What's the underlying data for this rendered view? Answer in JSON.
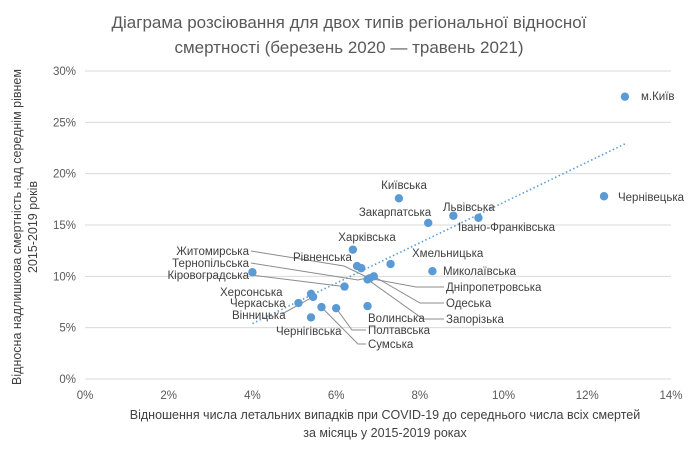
{
  "chart_data": {
    "type": "scatter",
    "title_lines": [
      "Діаграма розсіювання для двох типів регіональної відносної",
      "смертності (березень 2020 — травень 2021)"
    ],
    "xlabel_lines": [
      "Відношення числа летальних випадків при COVID-19 до середнього числа всіх смертей",
      "за місяць у 2015-2019 роках"
    ],
    "ylabel_lines": [
      "Відносна надлишкова смертність над середнім рівнем",
      "2015-2019 років"
    ],
    "xlim": [
      0,
      14
    ],
    "ylim": [
      0,
      30
    ],
    "x_ticks": [
      0,
      2,
      4,
      6,
      8,
      10,
      12,
      14
    ],
    "y_ticks": [
      0,
      5,
      10,
      15,
      20,
      25,
      30
    ],
    "x_tick_labels": [
      "0%",
      "2%",
      "4%",
      "6%",
      "8%",
      "10%",
      "12%",
      "14%"
    ],
    "y_tick_labels": [
      "0%",
      "5%",
      "10%",
      "15%",
      "20%",
      "25%",
      "30%"
    ],
    "grid": "horizontal",
    "marker_color": "#5b9bd5",
    "trendline": {
      "style": "dotted",
      "color": "#5b9bd5",
      "x": [
        4.0,
        12.9
      ],
      "y": [
        5.4,
        22.9
      ]
    },
    "points": [
      {
        "label": "м.Київ",
        "x": 12.9,
        "y": 27.5
      },
      {
        "label": "Чернівецька",
        "x": 12.4,
        "y": 17.8
      },
      {
        "label": "Київська",
        "x": 7.5,
        "y": 17.6
      },
      {
        "label": "Львівська",
        "x": 8.8,
        "y": 15.9
      },
      {
        "label": "Івано-Франківська",
        "x": 9.4,
        "y": 15.7
      },
      {
        "label": "Закарпатська",
        "x": 8.2,
        "y": 15.2
      },
      {
        "label": "Харківська",
        "x": 6.4,
        "y": 12.6
      },
      {
        "label": "Хмельницька",
        "x": 7.3,
        "y": 11.2
      },
      {
        "label": "Миколаївська",
        "x": 8.3,
        "y": 10.5
      },
      {
        "label": "Рівненська",
        "x": 6.5,
        "y": 11.0
      },
      {
        "label": "Житомирська",
        "x": 4.0,
        "y": 10.4
      },
      {
        "label": "Тернопільська",
        "x": 6.6,
        "y": 10.8
      },
      {
        "label": "Дніпропетровська",
        "x": 6.8,
        "y": 9.8
      },
      {
        "label": "Одеська",
        "x": 6.9,
        "y": 10.0
      },
      {
        "label": "Запорізька",
        "x": 6.75,
        "y": 9.7
      },
      {
        "label": "Кіровоградська",
        "x": 6.2,
        "y": 9.0
      },
      {
        "label": "Херсонська",
        "x": 5.4,
        "y": 8.3
      },
      {
        "label": "Черкаська",
        "x": 5.1,
        "y": 7.4
      },
      {
        "label": "Вінницька",
        "x": 5.45,
        "y": 8.0
      },
      {
        "label": "Волинська",
        "x": 6.75,
        "y": 7.1
      },
      {
        "label": "Полтавська",
        "x": 6.0,
        "y": 6.9
      },
      {
        "label": "Сумська",
        "x": 5.65,
        "y": 7.0
      },
      {
        "label": "Чернігівська",
        "x": 5.4,
        "y": 6.0
      }
    ]
  }
}
